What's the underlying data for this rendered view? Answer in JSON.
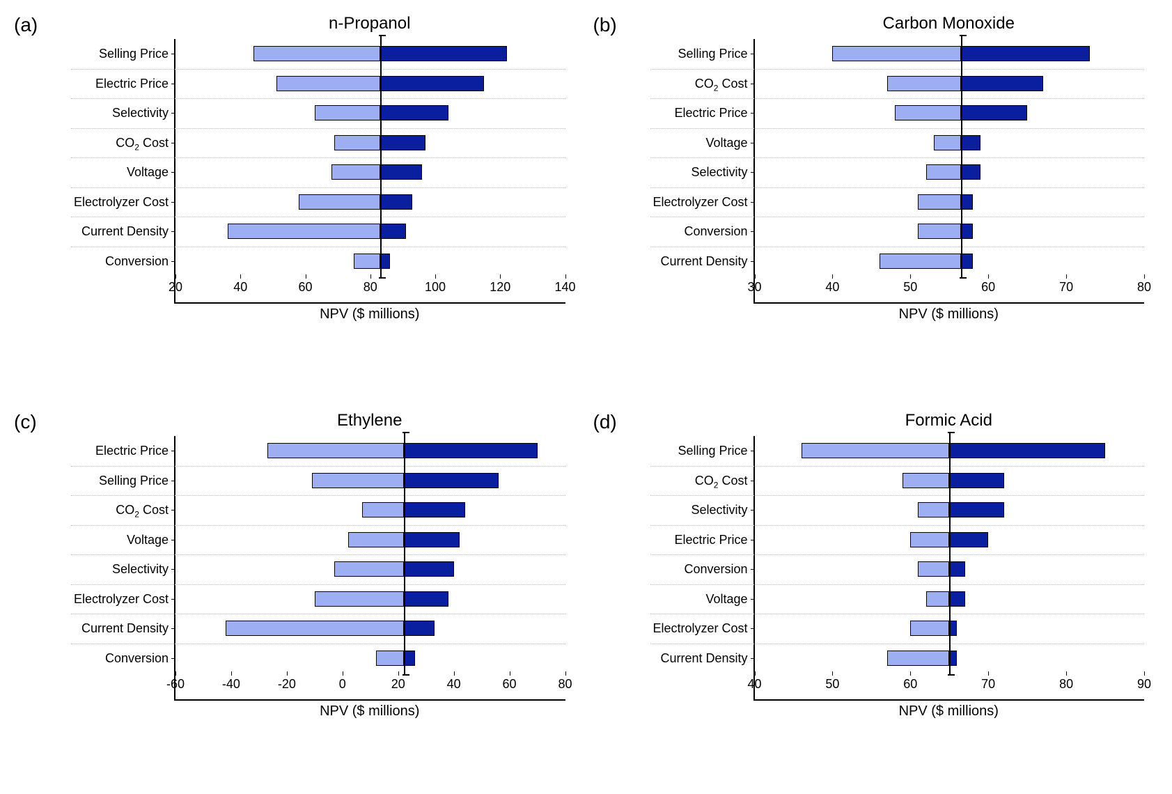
{
  "figure": {
    "background_color": "#ffffff",
    "grid_color": "#bbbbbb",
    "axis_color": "#000000",
    "bar_left_color": "#9eaef2",
    "bar_right_color": "#0a1fa0",
    "bar_border_color": "#000000",
    "title_fontsize": 24,
    "label_fontsize": 18,
    "panel_label_fontsize": 28,
    "xlabel_fontsize": 20,
    "xlabel": "NPV ($ millions)",
    "panels": [
      {
        "id": "a",
        "panel_label": "(a)",
        "title": "n-Propanol",
        "baseline": 83,
        "xlim": [
          20,
          140
        ],
        "xtick_step": 20,
        "xticks": [
          20,
          40,
          60,
          80,
          100,
          120,
          140
        ],
        "categories": [
          {
            "label": "Selling Price",
            "low": 44,
            "high": 122
          },
          {
            "label": "Electric Price",
            "low": 51,
            "high": 115
          },
          {
            "label": "Selectivity",
            "low": 63,
            "high": 104
          },
          {
            "label": "CO2 Cost",
            "label_html": "CO<sub>2</sub> Cost",
            "low": 69,
            "high": 97
          },
          {
            "label": "Voltage",
            "low": 68,
            "high": 96
          },
          {
            "label": "Electrolyzer Cost",
            "low": 58,
            "high": 93
          },
          {
            "label": "Current Density",
            "low": 36,
            "high": 91
          },
          {
            "label": "Conversion",
            "low": 75,
            "high": 86
          }
        ]
      },
      {
        "id": "b",
        "panel_label": "(b)",
        "title": "Carbon Monoxide",
        "baseline": 56.5,
        "xlim": [
          30,
          80
        ],
        "xtick_step": 10,
        "xticks": [
          30,
          40,
          50,
          60,
          70,
          80
        ],
        "categories": [
          {
            "label": "Selling Price",
            "low": 40,
            "high": 73
          },
          {
            "label": "CO2 Cost",
            "label_html": "CO<sub>2</sub> Cost",
            "low": 47,
            "high": 67
          },
          {
            "label": "Electric Price",
            "low": 48,
            "high": 65
          },
          {
            "label": "Voltage",
            "low": 53,
            "high": 59
          },
          {
            "label": "Selectivity",
            "low": 52,
            "high": 59
          },
          {
            "label": "Electrolyzer Cost",
            "low": 51,
            "high": 58
          },
          {
            "label": "Conversion",
            "low": 51,
            "high": 58
          },
          {
            "label": "Current Density",
            "low": 46,
            "high": 58
          }
        ]
      },
      {
        "id": "c",
        "panel_label": "(c)",
        "title": "Ethylene",
        "baseline": 22,
        "xlim": [
          -60,
          80
        ],
        "xtick_step": 20,
        "xticks": [
          -60,
          -40,
          -20,
          0,
          20,
          40,
          60,
          80
        ],
        "categories": [
          {
            "label": "Electric Price",
            "low": -27,
            "high": 70
          },
          {
            "label": "Selling Price",
            "low": -11,
            "high": 56
          },
          {
            "label": "CO2 Cost",
            "label_html": "CO<sub>2</sub> Cost",
            "low": 7,
            "high": 44
          },
          {
            "label": "Voltage",
            "low": 2,
            "high": 42
          },
          {
            "label": "Selectivity",
            "low": -3,
            "high": 40
          },
          {
            "label": "Electrolyzer Cost",
            "low": -10,
            "high": 38
          },
          {
            "label": "Current Density",
            "low": -42,
            "high": 33
          },
          {
            "label": "Conversion",
            "low": 12,
            "high": 26
          }
        ]
      },
      {
        "id": "d",
        "panel_label": "(d)",
        "title": "Formic Acid",
        "baseline": 65,
        "xlim": [
          40,
          90
        ],
        "xtick_step": 10,
        "xticks": [
          40,
          50,
          60,
          70,
          80,
          90
        ],
        "categories": [
          {
            "label": "Selling Price",
            "low": 46,
            "high": 85
          },
          {
            "label": "CO2 Cost",
            "label_html": "CO<sub>2</sub> Cost",
            "low": 59,
            "high": 72
          },
          {
            "label": "Selectivity",
            "low": 61,
            "high": 72
          },
          {
            "label": "Electric Price",
            "low": 60,
            "high": 70
          },
          {
            "label": "Conversion",
            "low": 61,
            "high": 67
          },
          {
            "label": "Voltage",
            "low": 62,
            "high": 67
          },
          {
            "label": "Electrolyzer Cost",
            "low": 60,
            "high": 66
          },
          {
            "label": "Current Density",
            "low": 57,
            "high": 66
          }
        ]
      }
    ]
  }
}
